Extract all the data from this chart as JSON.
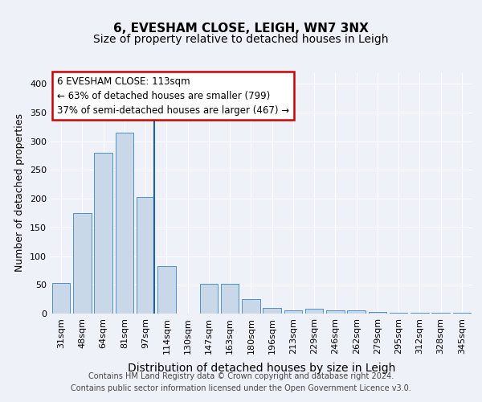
{
  "title": "6, EVESHAM CLOSE, LEIGH, WN7 3NX",
  "subtitle": "Size of property relative to detached houses in Leigh",
  "xlabel": "Distribution of detached houses by size in Leigh",
  "ylabel": "Number of detached properties",
  "bin_labels": [
    "31sqm",
    "48sqm",
    "64sqm",
    "81sqm",
    "97sqm",
    "114sqm",
    "130sqm",
    "147sqm",
    "163sqm",
    "180sqm",
    "196sqm",
    "213sqm",
    "229sqm",
    "246sqm",
    "262sqm",
    "279sqm",
    "295sqm",
    "312sqm",
    "328sqm",
    "345sqm"
  ],
  "bar_values": [
    53,
    175,
    280,
    315,
    203,
    82,
    0,
    52,
    52,
    25,
    10,
    5,
    8,
    5,
    5,
    3,
    2,
    2,
    2,
    2
  ],
  "bar_color": "#c8d8e8",
  "bar_edge_color": "#5090c0",
  "highlight_bin_index": 4,
  "highlight_line_color": "#2060a0",
  "annotation_line1": "6 EVESHAM CLOSE: 113sqm",
  "annotation_line2": "← 63% of detached houses are smaller (799)",
  "annotation_line3": "37% of semi-detached houses are larger (467) →",
  "annotation_box_color": "#ffffff",
  "annotation_box_edge_color": "#cc0000",
  "ylim": [
    0,
    420
  ],
  "yticks": [
    0,
    50,
    100,
    150,
    200,
    250,
    300,
    350,
    400
  ],
  "background_color": "#eef2f8",
  "grid_color": "#ffffff",
  "footer_line1": "Contains HM Land Registry data © Crown copyright and database right 2024.",
  "footer_line2": "Contains public sector information licensed under the Open Government Licence v3.0.",
  "title_fontsize": 11,
  "subtitle_fontsize": 10,
  "xlabel_fontsize": 10,
  "ylabel_fontsize": 9,
  "tick_fontsize": 8,
  "annotation_fontsize": 8.5,
  "footer_fontsize": 7
}
